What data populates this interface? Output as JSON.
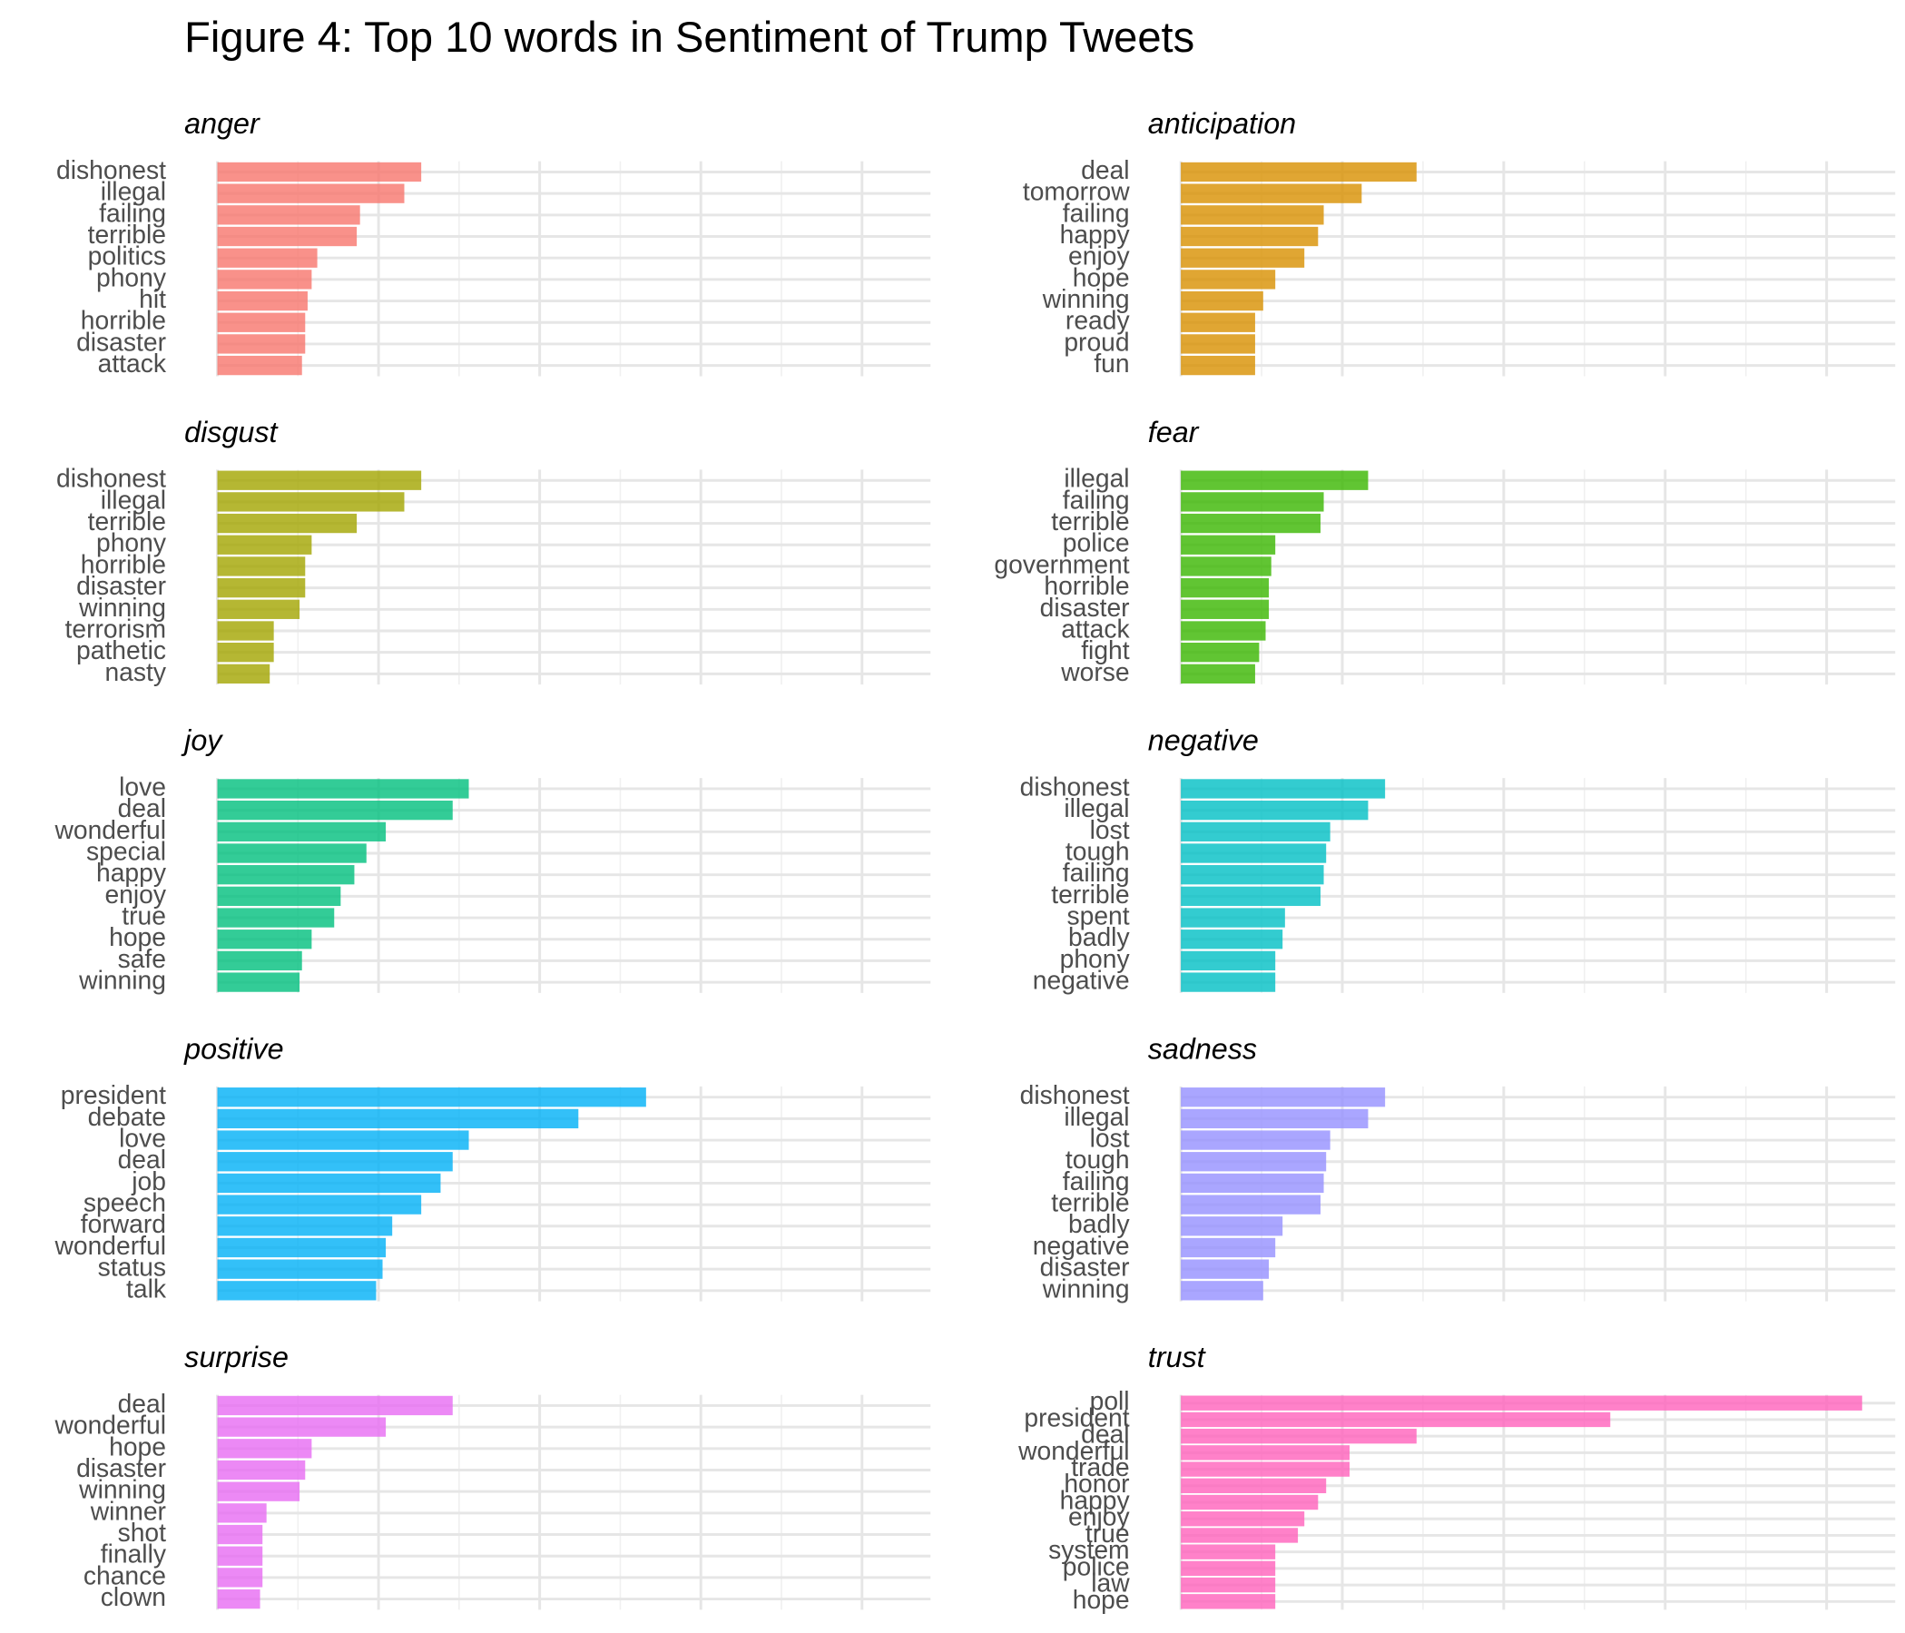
{
  "title": "Figure 4: Top 10 words in Sentiment of Trump Tweets",
  "chart_data": [
    {
      "type": "bar",
      "orientation": "horizontal",
      "title": "anger",
      "color": "#F8766D",
      "xlim": [
        0,
        8.85
      ],
      "xticks": [
        0,
        2,
        4,
        6,
        8
      ],
      "xminor": [
        1,
        3,
        5,
        7
      ],
      "grid": true,
      "categories": [
        "dishonest",
        "illegal",
        "failing",
        "terrible",
        "politics",
        "phony",
        "hit",
        "horrible",
        "disaster",
        "attack"
      ],
      "values": [
        2.53,
        2.32,
        1.77,
        1.73,
        1.24,
        1.17,
        1.12,
        1.09,
        1.09,
        1.05
      ]
    },
    {
      "type": "bar",
      "orientation": "horizontal",
      "title": "anticipation",
      "color": "#D89000",
      "xlim": [
        0,
        8.85
      ],
      "xticks": [
        0,
        2,
        4,
        6,
        8
      ],
      "xminor": [
        1,
        3,
        5,
        7
      ],
      "grid": true,
      "categories": [
        "deal",
        "tomorrow",
        "failing",
        "happy",
        "enjoy",
        "hope",
        "winning",
        "ready",
        "proud",
        "fun"
      ],
      "values": [
        2.92,
        2.24,
        1.77,
        1.7,
        1.53,
        1.17,
        1.02,
        0.92,
        0.92,
        0.92
      ]
    },
    {
      "type": "bar",
      "orientation": "horizontal",
      "title": "disgust",
      "color": "#A3A500",
      "xlim": [
        0,
        8.85
      ],
      "xticks": [
        0,
        2,
        4,
        6,
        8
      ],
      "xminor": [
        1,
        3,
        5,
        7
      ],
      "grid": true,
      "categories": [
        "dishonest",
        "illegal",
        "terrible",
        "phony",
        "horrible",
        "disaster",
        "winning",
        "terrorism",
        "pathetic",
        "nasty"
      ],
      "values": [
        2.53,
        2.32,
        1.73,
        1.17,
        1.09,
        1.09,
        1.02,
        0.7,
        0.7,
        0.65
      ]
    },
    {
      "type": "bar",
      "orientation": "horizontal",
      "title": "fear",
      "color": "#39B600",
      "xlim": [
        0,
        8.85
      ],
      "xticks": [
        0,
        2,
        4,
        6,
        8
      ],
      "xminor": [
        1,
        3,
        5,
        7
      ],
      "grid": true,
      "categories": [
        "illegal",
        "failing",
        "terrible",
        "police",
        "government",
        "horrible",
        "disaster",
        "attack",
        "fight",
        "worse"
      ],
      "values": [
        2.32,
        1.77,
        1.73,
        1.17,
        1.12,
        1.09,
        1.09,
        1.05,
        0.97,
        0.92
      ]
    },
    {
      "type": "bar",
      "orientation": "horizontal",
      "title": "joy",
      "color": "#00BF7D",
      "xlim": [
        0,
        8.85
      ],
      "xticks": [
        0,
        2,
        4,
        6,
        8
      ],
      "xminor": [
        1,
        3,
        5,
        7
      ],
      "grid": true,
      "categories": [
        "love",
        "deal",
        "wonderful",
        "special",
        "happy",
        "enjoy",
        "true",
        "hope",
        "safe",
        "winning"
      ],
      "values": [
        3.12,
        2.92,
        2.09,
        1.85,
        1.7,
        1.53,
        1.45,
        1.17,
        1.05,
        1.02
      ]
    },
    {
      "type": "bar",
      "orientation": "horizontal",
      "title": "negative",
      "color": "#00BFC4",
      "xlim": [
        0,
        8.85
      ],
      "xticks": [
        0,
        2,
        4,
        6,
        8
      ],
      "xminor": [
        1,
        3,
        5,
        7
      ],
      "grid": true,
      "categories": [
        "dishonest",
        "illegal",
        "lost",
        "tough",
        "failing",
        "terrible",
        "spent",
        "badly",
        "phony",
        "negative"
      ],
      "values": [
        2.53,
        2.32,
        1.85,
        1.8,
        1.77,
        1.73,
        1.29,
        1.26,
        1.17,
        1.17
      ]
    },
    {
      "type": "bar",
      "orientation": "horizontal",
      "title": "positive",
      "color": "#00B0F6",
      "xlim": [
        0,
        8.85
      ],
      "xticks": [
        0,
        2,
        4,
        6,
        8
      ],
      "xminor": [
        1,
        3,
        5,
        7
      ],
      "grid": true,
      "categories": [
        "president",
        "debate",
        "love",
        "deal",
        "job",
        "speech",
        "forward",
        "wonderful",
        "status",
        "talk"
      ],
      "values": [
        5.32,
        4.48,
        3.12,
        2.92,
        2.77,
        2.53,
        2.17,
        2.09,
        2.05,
        1.97
      ]
    },
    {
      "type": "bar",
      "orientation": "horizontal",
      "title": "sadness",
      "color": "#9590FF",
      "xlim": [
        0,
        8.85
      ],
      "xticks": [
        0,
        2,
        4,
        6,
        8
      ],
      "xminor": [
        1,
        3,
        5,
        7
      ],
      "grid": true,
      "categories": [
        "dishonest",
        "illegal",
        "lost",
        "tough",
        "failing",
        "terrible",
        "badly",
        "negative",
        "disaster",
        "winning"
      ],
      "values": [
        2.53,
        2.32,
        1.85,
        1.8,
        1.77,
        1.73,
        1.26,
        1.17,
        1.09,
        1.02
      ]
    },
    {
      "type": "bar",
      "orientation": "horizontal",
      "title": "surprise",
      "color": "#E76BF3",
      "xlim": [
        0,
        8.85
      ],
      "xticks": [
        0,
        2,
        4,
        6,
        8
      ],
      "xminor": [
        1,
        3,
        5,
        7
      ],
      "grid": true,
      "categories": [
        "deal",
        "wonderful",
        "hope",
        "disaster",
        "winning",
        "winner",
        "shot",
        "finally",
        "chance",
        "clown"
      ],
      "values": [
        2.92,
        2.09,
        1.17,
        1.09,
        1.02,
        0.61,
        0.56,
        0.56,
        0.56,
        0.53
      ]
    },
    {
      "type": "bar",
      "orientation": "horizontal",
      "title": "trust",
      "color": "#FF62BC",
      "xlim": [
        0,
        8.85
      ],
      "xticks": [
        0,
        2,
        4,
        6,
        8
      ],
      "xminor": [
        1,
        3,
        5,
        7
      ],
      "grid": true,
      "categories": [
        "poll",
        "president",
        "deal",
        "wonderful",
        "trade",
        "honor",
        "happy",
        "enjoy",
        "true",
        "system",
        "police",
        "law",
        "hope"
      ],
      "values": [
        8.44,
        5.32,
        2.92,
        2.09,
        2.09,
        1.8,
        1.7,
        1.53,
        1.45,
        1.17,
        1.17,
        1.17,
        1.17
      ]
    }
  ]
}
